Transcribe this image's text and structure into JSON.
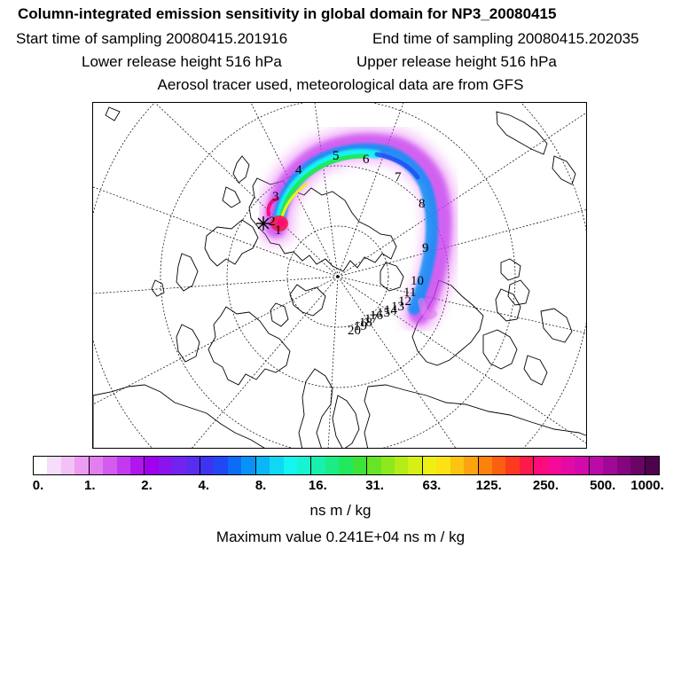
{
  "header": {
    "title": "Column-integrated emission sensitivity in global domain for NP3_20080415",
    "start_time": "Start time of sampling 20080415.201916",
    "end_time": "End time of sampling 20080415.202035",
    "lower_height": "Lower release height  516 hPa",
    "upper_height": "Upper release height  516 hPa",
    "note": "Aerosol tracer used, meteorological data are from GFS"
  },
  "map": {
    "projection": "polar-stereographic-north",
    "release_marker": "cross-marker",
    "day_labels": [
      "1",
      "2",
      "3",
      "4",
      "5",
      "6",
      "7",
      "8",
      "9",
      "10",
      "11",
      "12",
      "13",
      "14",
      "15",
      "16",
      "17",
      "18",
      "19",
      "20"
    ],
    "palette": [
      "#ffffff",
      "#f7dcfb",
      "#f2c2f7",
      "#ec9df3",
      "#e27ef0",
      "#d35cee",
      "#c33aee",
      "#b016ee",
      "#a000ee",
      "#8a14ee",
      "#7124ee",
      "#5a2cf0",
      "#3d34f2",
      "#2148f4",
      "#0b6cf6",
      "#0892f6",
      "#0ab6f6",
      "#0ed8f4",
      "#14f4f0",
      "#16f4d2",
      "#18f0ae",
      "#1cec86",
      "#22e85e",
      "#3ce43a",
      "#66e426",
      "#8ee81e",
      "#b4ec18",
      "#d6f016",
      "#eef014",
      "#fce214",
      "#fcc410",
      "#fca40e",
      "#fc820e",
      "#fc5e12",
      "#fc3a1e",
      "#fc1a4a",
      "#fc0c7a",
      "#f40a96",
      "#e40aa6",
      "#d20aac",
      "#bc0aa8",
      "#a00896",
      "#84067e",
      "#6a0466",
      "#50024e"
    ],
    "colors": {
      "coast": "#000000",
      "grid": "#000000"
    }
  },
  "colorbar": {
    "tick_labels": [
      "0.",
      "1.",
      "2.",
      "4.",
      "8.",
      "16.",
      "31.",
      "63.",
      "125.",
      "250.",
      "500.",
      "1000."
    ]
  },
  "units": "ns m / kg",
  "max_value": "Maximum value  0.241E+04 ns m / kg"
}
